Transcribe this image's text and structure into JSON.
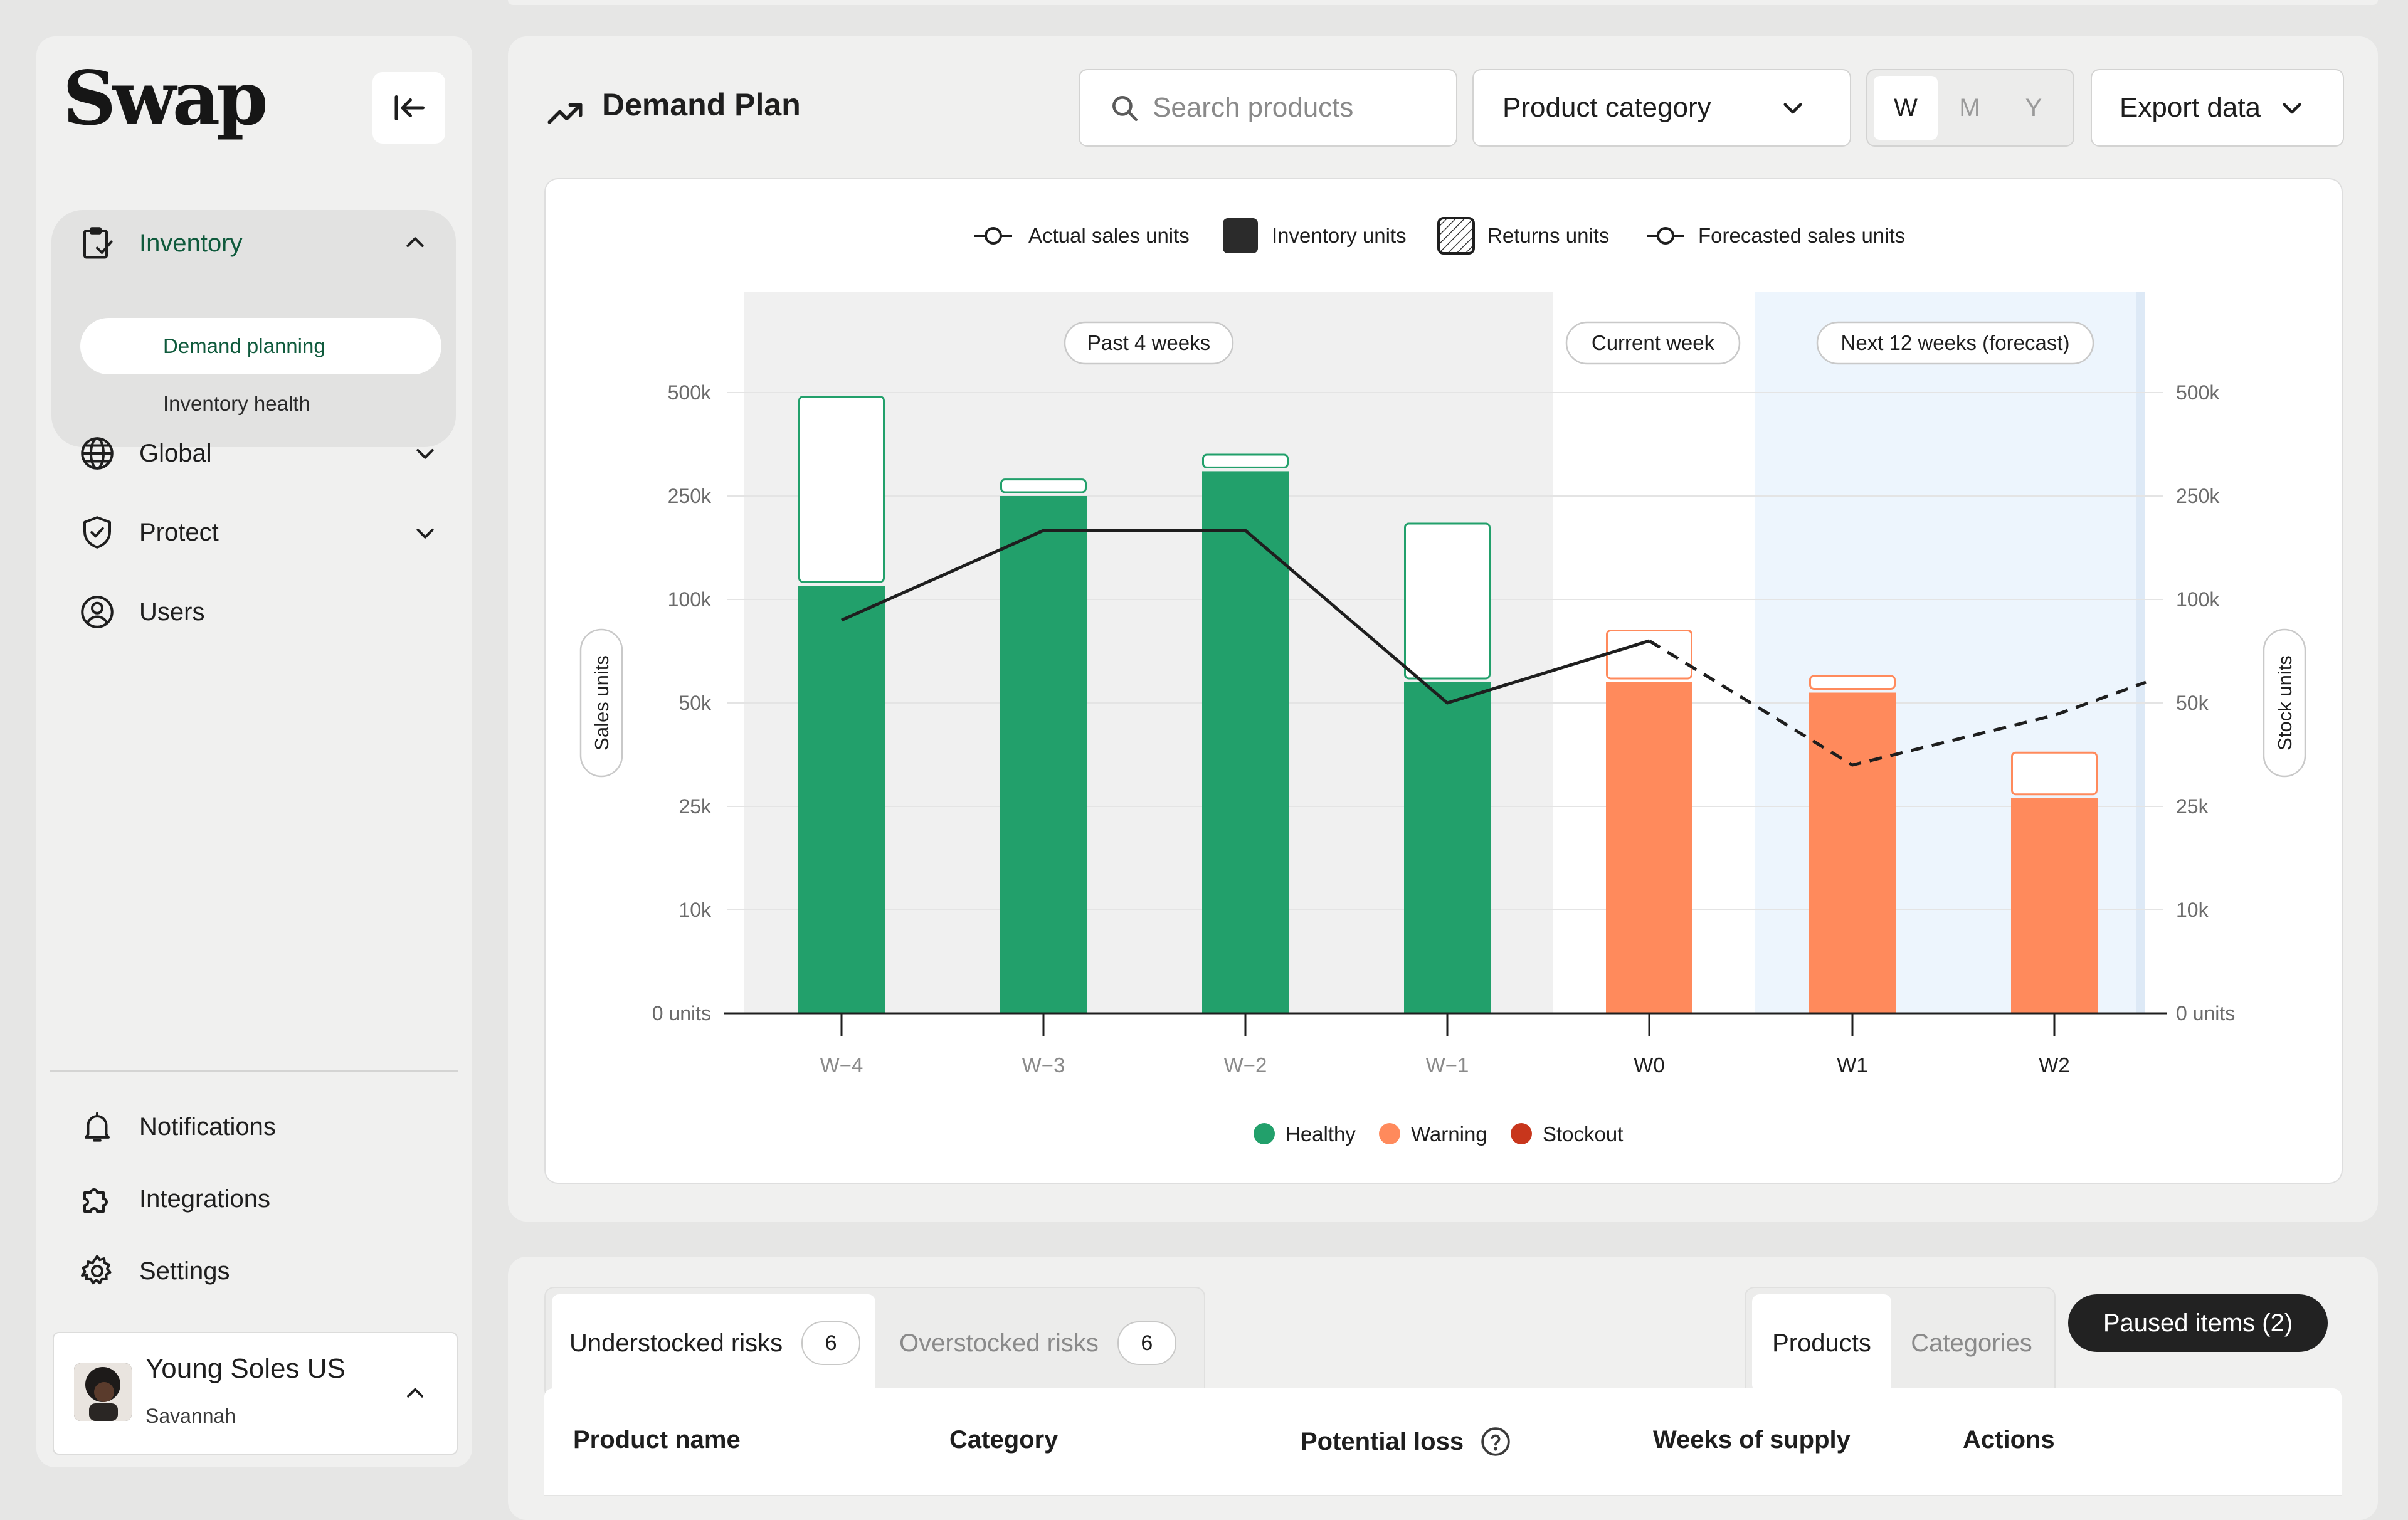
{
  "app": {
    "logo": "Swap"
  },
  "sidebar": {
    "groups": [
      {
        "label": "Inventory",
        "icon": "clipboard-check-icon",
        "expanded": true,
        "children": [
          {
            "label": "Demand planning",
            "active": true
          },
          {
            "label": "Inventory health",
            "active": false
          }
        ]
      },
      {
        "label": "Global",
        "icon": "globe-icon"
      },
      {
        "label": "Protect",
        "icon": "shield-check-icon"
      },
      {
        "label": "Users",
        "icon": "user-circle-icon"
      }
    ],
    "bottom_items": [
      {
        "label": "Notifications",
        "icon": "bell-icon"
      },
      {
        "label": "Integrations",
        "icon": "puzzle-icon"
      },
      {
        "label": "Settings",
        "icon": "gear-icon"
      }
    ],
    "user": {
      "org": "Young Soles US",
      "name": "Savannah"
    }
  },
  "header": {
    "title": "Demand Plan",
    "search_placeholder": "Search products",
    "category_select": "Product category",
    "period": {
      "options": [
        "W",
        "M",
        "Y"
      ],
      "selected": "W"
    },
    "export": "Export data"
  },
  "chart_data": {
    "type": "bar",
    "legend_top": [
      "Actual sales units",
      "Inventory units",
      "Returns units",
      "Forecasted sales units"
    ],
    "legend_bottom": [
      {
        "label": "Healthy",
        "color": "#22a06b"
      },
      {
        "label": "Warning",
        "color": "#ff8a5c"
      },
      {
        "label": "Stockout",
        "color": "#c8361c"
      }
    ],
    "colors": {
      "healthy": "#22a06b",
      "warning": "#ff8a5c",
      "past_bg": "#f0f0f0",
      "forecast_bg": "#edf5fd"
    },
    "periods": [
      "Past 4 weeks",
      "Current week",
      "Next 12 weeks (forecast)"
    ],
    "categories": [
      "W−4",
      "W−3",
      "W−2",
      "W−1",
      "W0",
      "W1",
      "W2"
    ],
    "y_ticks": [
      "0 units",
      "10k",
      "25k",
      "50k",
      "100k",
      "250k",
      "500k"
    ],
    "y_tick_values": [
      0,
      10000,
      25000,
      50000,
      100000,
      250000,
      500000
    ],
    "ylabel_left": "Sales units",
    "ylabel_right": "Stock units",
    "inventory": [
      120000,
      250000,
      310000,
      60000,
      60000,
      55000,
      27000
    ],
    "returns_top": [
      490000,
      290000,
      350000,
      210000,
      85000,
      63000,
      38000
    ],
    "status": [
      "healthy",
      "healthy",
      "healthy",
      "healthy",
      "warning",
      "warning",
      "warning"
    ],
    "actual_sales": [
      {
        "x": "W−4",
        "y": 90000
      },
      {
        "x": "W−3",
        "y": 200000
      },
      {
        "x": "W−2",
        "y": 200000
      },
      {
        "x": "W−1",
        "y": 50000
      },
      {
        "x": "W0",
        "y": 80000
      }
    ],
    "forecasted_sales": [
      {
        "x": "W0",
        "y": 80000
      },
      {
        "x": "W1",
        "y": 35000
      },
      {
        "x": "W2",
        "y": 47000
      },
      {
        "x": "end",
        "y": 60000
      }
    ]
  },
  "risks": {
    "tabs": [
      {
        "label": "Understocked risks",
        "count": "6",
        "active": true
      },
      {
        "label": "Overstocked risks",
        "count": "6",
        "active": false
      }
    ],
    "view_tabs": [
      {
        "label": "Products",
        "active": true
      },
      {
        "label": "Categories",
        "active": false
      }
    ],
    "paused": "Paused items (2)",
    "columns": [
      "Product name",
      "Category",
      "Potential loss",
      "Weeks of supply",
      "Actions"
    ]
  }
}
